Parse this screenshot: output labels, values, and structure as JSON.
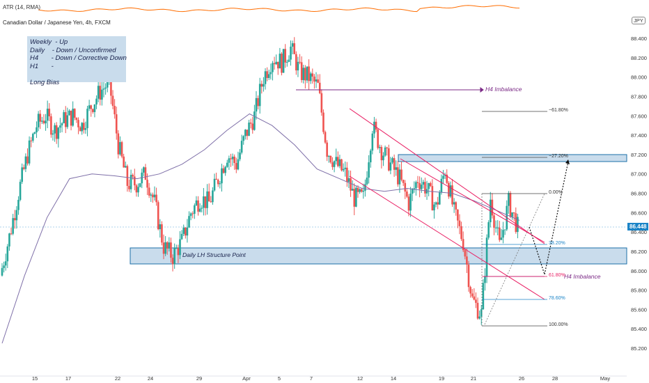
{
  "indicator": {
    "label": "ATR (14, RMA)"
  },
  "header": {
    "title": "Canadian Dollar / Japanese Yen, 4h, FXCM",
    "currency": "JPY"
  },
  "notes": {
    "lines": [
      {
        "k": "Weekly",
        "v": "- Up"
      },
      {
        "k": "Daily",
        "v": "- Down / Unconfirmed"
      },
      {
        "k": "H4",
        "v": "- Down / Corrective Down"
      },
      {
        "k": "H1",
        "v": "-"
      },
      {
        "k": "",
        "v": ""
      },
      {
        "k": "Long Bias",
        "v": ""
      }
    ]
  },
  "price_tag": "86.448",
  "annotations": {
    "structure": "Daily LH Structure Point",
    "imbalance_1": "H4 Imbalance",
    "imbalance_2": "H4 Imbalance",
    "fib_m618": "−61.80%",
    "fib_m272": "−27.20%",
    "fib_0": "0.00%",
    "fib_382": "38.20%",
    "fib_618": "61.80%",
    "fib_786": "78.60%",
    "fib_100": "100.00%"
  },
  "colors": {
    "up": "#26a69a",
    "down": "#ef5350",
    "ma": "#7e6fa8",
    "zone": "#c9dcec",
    "zone_border": "#1b6fa8",
    "channel": "#e91e63",
    "imbalance": "#7b2a86",
    "atr": "#ff6d00",
    "price": "#1b84c7"
  },
  "chart_data": {
    "type": "candlestick",
    "title": "Canadian Dollar / Japanese Yen, 4h, FXCM",
    "ylim": [
      85.15,
      88.55
    ],
    "y_ticks": [
      "88.400",
      "88.200",
      "88.000",
      "87.800",
      "87.600",
      "87.400",
      "87.200",
      "87.000",
      "86.800",
      "86.600",
      "86.400",
      "86.200",
      "86.000",
      "85.800",
      "85.600",
      "85.400",
      "85.200"
    ],
    "x_ticks": [
      "15",
      "17",
      "22",
      "24",
      "29",
      "Apr",
      "5",
      "7",
      "12",
      "14",
      "19",
      "21",
      "26",
      "28",
      "May"
    ],
    "last_price": 86.448,
    "close_path": [
      85.95,
      86.35,
      86.8,
      87.2,
      87.5,
      87.6,
      87.45,
      87.55,
      87.6,
      87.5,
      87.7,
      87.85,
      87.95,
      87.3,
      86.9,
      86.9,
      87.0,
      86.7,
      86.25,
      86.15,
      86.3,
      86.6,
      86.75,
      86.7,
      86.95,
      87.2,
      87.1,
      87.4,
      87.6,
      88.0,
      88.2,
      88.15,
      88.3,
      88.05,
      88.0,
      87.9,
      87.25,
      87.1,
      87.0,
      86.75,
      86.75,
      87.5,
      87.25,
      87.1,
      86.95,
      86.7,
      86.95,
      86.85,
      86.65,
      87.05,
      86.6,
      86.3,
      85.7,
      85.55,
      86.75,
      86.25,
      86.7,
      86.45
    ],
    "series": [
      {
        "name": "EMA",
        "values": [
          85.25,
          85.95,
          86.55,
          86.95,
          87.0,
          86.98,
          86.95,
          87.0,
          87.1,
          87.25,
          87.45,
          87.62,
          87.5,
          87.3,
          87.05,
          86.95,
          86.85,
          86.82,
          86.85,
          86.82,
          86.8,
          86.72,
          86.62,
          86.52
        ]
      }
    ]
  }
}
